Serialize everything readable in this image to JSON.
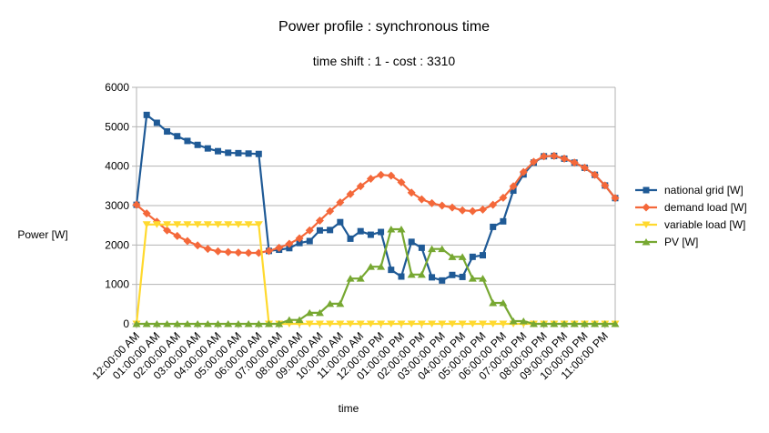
{
  "chart_data": {
    "type": "line",
    "title": "Power profile : synchronous time",
    "subtitle": "time shift : 1 - cost : 3310",
    "y_label": "Power [W]",
    "x_label": "time",
    "categories": [
      "12:00:00 AM",
      null,
      "01:00:00 AM",
      null,
      "02:00:00 AM",
      null,
      "03:00:00 AM",
      null,
      "04:00:00 AM",
      null,
      "05:00:00 AM",
      null,
      "06:00:00 AM",
      null,
      "07:00:00 AM",
      null,
      "08:00:00 AM",
      null,
      "09:00:00 AM",
      null,
      "10:00:00 AM",
      null,
      "11:00:00 AM",
      null,
      "12:00:00 PM",
      null,
      "01:00:00 PM",
      null,
      "02:00:00 PM",
      null,
      "03:00:00 PM",
      null,
      "04:00:00 PM",
      null,
      "05:00:00 PM",
      null,
      "06:00:00 PM",
      null,
      "07:00:00 PM",
      null,
      "08:00:00 PM",
      null,
      "09:00:00 PM",
      null,
      "10:00:00 PM",
      null,
      "11:00:00 PM",
      null
    ],
    "series": [
      {
        "name": "national grid [W]",
        "color": "#1f5a96",
        "marker": "square",
        "values": [
          3020,
          5300,
          5100,
          4880,
          4760,
          4640,
          4540,
          4450,
          4380,
          4340,
          4330,
          4320,
          4310,
          1850,
          1880,
          1920,
          2050,
          2100,
          2370,
          2380,
          2580,
          2160,
          2350,
          2260,
          2330,
          1370,
          1200,
          2080,
          1930,
          1180,
          1100,
          1240,
          1190,
          1700,
          1740,
          2460,
          2600,
          3380,
          3790,
          4090,
          4250,
          4260,
          4190,
          4090,
          3960,
          3780,
          3510,
          3190
        ]
      },
      {
        "name": "demand load [W]",
        "color": "#f4683a",
        "marker": "diamond",
        "values": [
          3020,
          2800,
          2590,
          2370,
          2230,
          2100,
          1990,
          1900,
          1840,
          1820,
          1810,
          1800,
          1800,
          1850,
          1930,
          2030,
          2170,
          2370,
          2620,
          2860,
          3080,
          3290,
          3490,
          3680,
          3780,
          3760,
          3590,
          3330,
          3160,
          3060,
          3000,
          2950,
          2880,
          2860,
          2900,
          3020,
          3200,
          3490,
          3850,
          4110,
          4250,
          4260,
          4190,
          4090,
          3960,
          3780,
          3510,
          3190
        ]
      },
      {
        "name": "variable load [W]",
        "color": "#ffd92e",
        "marker": "triangle-down",
        "values": [
          0,
          2520,
          2520,
          2520,
          2520,
          2520,
          2520,
          2520,
          2520,
          2520,
          2520,
          2520,
          2520,
          0,
          0,
          0,
          0,
          0,
          0,
          0,
          0,
          0,
          0,
          0,
          0,
          0,
          0,
          0,
          0,
          0,
          0,
          0,
          0,
          0,
          0,
          0,
          0,
          0,
          0,
          0,
          0,
          0,
          0,
          0,
          0,
          0,
          0,
          0
        ]
      },
      {
        "name": "PV [W]",
        "color": "#77a832",
        "marker": "triangle-up",
        "values": [
          0,
          0,
          0,
          0,
          0,
          0,
          0,
          0,
          0,
          0,
          0,
          0,
          0,
          0,
          0,
          100,
          100,
          280,
          280,
          510,
          510,
          1150,
          1150,
          1450,
          1450,
          2400,
          2400,
          1250,
          1250,
          1900,
          1900,
          1700,
          1700,
          1150,
          1150,
          530,
          530,
          70,
          70,
          0,
          0,
          0,
          0,
          0,
          0,
          0,
          0,
          0
        ]
      }
    ],
    "ylim": [
      0,
      6000
    ],
    "yticks": [
      0,
      1000,
      2000,
      3000,
      4000,
      5000,
      6000
    ],
    "grid": true,
    "legend": "right"
  }
}
